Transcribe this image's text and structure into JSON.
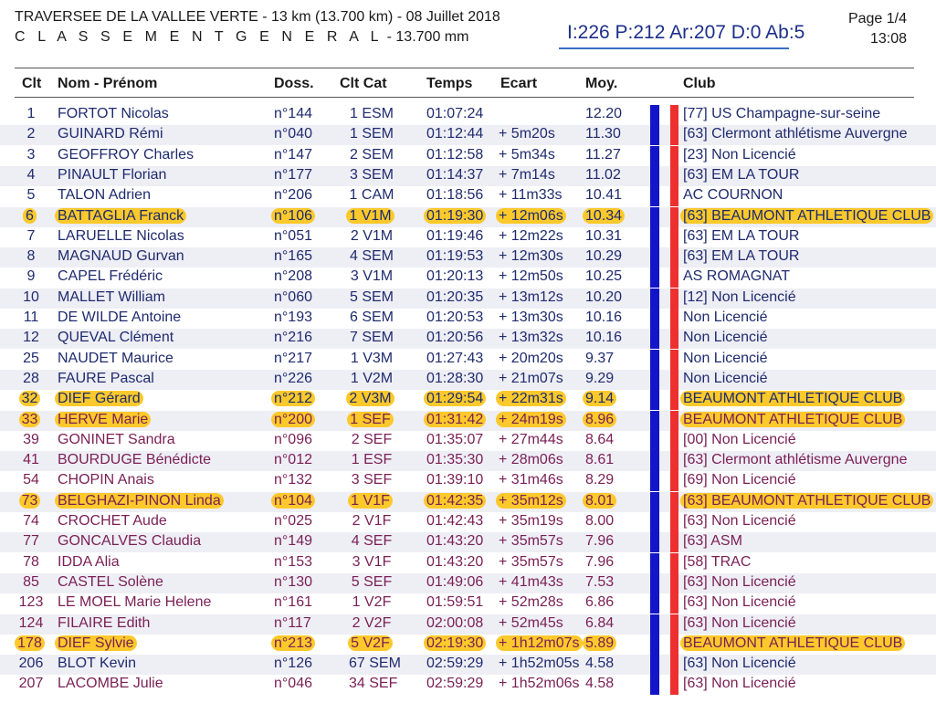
{
  "header": {
    "title": "TRAVERSEE DE LA VALLEE VERTE - 13 km (13.700 km) - 08 Juillet 2018",
    "subtitle_spaced": "C L A S S E M E N T   G E N E R A L",
    "subtitle_rest": "- 13.700 mm",
    "stats": "I:226 P:212 Ar:207 D:0 Ab:5",
    "page": "Page 1/4",
    "time": "13:08"
  },
  "columns": {
    "clt": "Clt",
    "nom": "Nom - Prénom",
    "doss": "Doss.",
    "cat": "Clt Cat",
    "temps": "Temps",
    "ecart": "Ecart",
    "moy": "Moy.",
    "club": "Club"
  },
  "colors": {
    "highlight": "#fbc92b",
    "male_text": "#1f2b6e",
    "female_text": "#7a1f55",
    "bar_blue": "#1414c8",
    "bar_red": "#ee2f2f"
  },
  "rows": [
    {
      "clt": "1",
      "nom": "FORTOT Nicolas",
      "doss": "n°144",
      "cat": "1 ESM",
      "temps": "01:07:24",
      "ecart": "",
      "moy": "12.20",
      "club": "[77] US Champagne-sur-seine",
      "sex": "M",
      "hl": false
    },
    {
      "clt": "2",
      "nom": "GUINARD Rémi",
      "doss": "n°040",
      "cat": "1 SEM",
      "temps": "01:12:44",
      "ecart": "+ 5m20s",
      "moy": "11.30",
      "club": "[63] Clermont athlétisme Auvergne",
      "sex": "M",
      "hl": false
    },
    {
      "clt": "3",
      "nom": "GEOFFROY Charles",
      "doss": "n°147",
      "cat": "2 SEM",
      "temps": "01:12:58",
      "ecart": "+ 5m34s",
      "moy": "11.27",
      "club": "[23] Non Licencié",
      "sex": "M",
      "hl": false
    },
    {
      "clt": "4",
      "nom": "PINAULT Florian",
      "doss": "n°177",
      "cat": "3 SEM",
      "temps": "01:14:37",
      "ecart": "+ 7m14s",
      "moy": "11.02",
      "club": "[63] EM LA TOUR",
      "sex": "M",
      "hl": false
    },
    {
      "clt": "5",
      "nom": "TALON Adrien",
      "doss": "n°206",
      "cat": "1 CAM",
      "temps": "01:18:56",
      "ecart": "+ 11m33s",
      "moy": "10.41",
      "club": "AC COURNON",
      "sex": "M",
      "hl": false
    },
    {
      "clt": "6",
      "nom": "BATTAGLIA Franck",
      "doss": "n°106",
      "cat": "1 V1M",
      "temps": "01:19:30",
      "ecart": "+ 12m06s",
      "moy": "10.34",
      "club": "[63] BEAUMONT ATHLETIQUE CLUB",
      "sex": "M",
      "hl": true
    },
    {
      "clt": "7",
      "nom": "LARUELLE Nicolas",
      "doss": "n°051",
      "cat": "2 V1M",
      "temps": "01:19:46",
      "ecart": "+ 12m22s",
      "moy": "10.31",
      "club": "[63] EM LA TOUR",
      "sex": "M",
      "hl": false
    },
    {
      "clt": "8",
      "nom": "MAGNAUD Gurvan",
      "doss": "n°165",
      "cat": "4 SEM",
      "temps": "01:19:53",
      "ecart": "+ 12m30s",
      "moy": "10.29",
      "club": "[63] EM LA TOUR",
      "sex": "M",
      "hl": false
    },
    {
      "clt": "9",
      "nom": "CAPEL Frédéric",
      "doss": "n°208",
      "cat": "3 V1M",
      "temps": "01:20:13",
      "ecart": "+ 12m50s",
      "moy": "10.25",
      "club": "AS ROMAGNAT",
      "sex": "M",
      "hl": false
    },
    {
      "clt": "10",
      "nom": "MALLET William",
      "doss": "n°060",
      "cat": "5 SEM",
      "temps": "01:20:35",
      "ecart": "+ 13m12s",
      "moy": "10.20",
      "club": "[12] Non Licencié",
      "sex": "M",
      "hl": false
    },
    {
      "clt": "11",
      "nom": "DE WILDE Antoine",
      "doss": "n°193",
      "cat": "6 SEM",
      "temps": "01:20:53",
      "ecart": "+ 13m30s",
      "moy": "10.16",
      "club": "Non Licencié",
      "sex": "M",
      "hl": false
    },
    {
      "clt": "12",
      "nom": "QUEVAL Clément",
      "doss": "n°216",
      "cat": "7 SEM",
      "temps": "01:20:56",
      "ecart": "+ 13m32s",
      "moy": "10.16",
      "club": "Non Licencié",
      "sex": "M",
      "hl": false
    },
    {
      "clt": "25",
      "nom": "NAUDET Maurice",
      "doss": "n°217",
      "cat": "1 V3M",
      "temps": "01:27:43",
      "ecart": "+ 20m20s",
      "moy": "9.37",
      "club": "Non Licencié",
      "sex": "M",
      "hl": false
    },
    {
      "clt": "28",
      "nom": "FAURE Pascal",
      "doss": "n°226",
      "cat": "1 V2M",
      "temps": "01:28:30",
      "ecart": "+ 21m07s",
      "moy": "9.29",
      "club": "Non Licencié",
      "sex": "M",
      "hl": false
    },
    {
      "clt": "32",
      "nom": "DIEF Gérard",
      "doss": "n°212",
      "cat": "2 V3M",
      "temps": "01:29:54",
      "ecart": "+ 22m31s",
      "moy": "9.14",
      "club": "BEAUMONT ATHLETIQUE CLUB",
      "sex": "M",
      "hl": true
    },
    {
      "clt": "33",
      "nom": "HERVE Marie",
      "doss": "n°200",
      "cat": "1 SEF",
      "temps": "01:31:42",
      "ecart": "+ 24m19s",
      "moy": "8.96",
      "club": "BEAUMONT ATHLETIQUE CLUB",
      "sex": "F",
      "hl": true
    },
    {
      "clt": "39",
      "nom": "GONINET Sandra",
      "doss": "n°096",
      "cat": "2 SEF",
      "temps": "01:35:07",
      "ecart": "+ 27m44s",
      "moy": "8.64",
      "club": "[00] Non Licencié",
      "sex": "F",
      "hl": false
    },
    {
      "clt": "41",
      "nom": "BOURDUGE Bénédicte",
      "doss": "n°012",
      "cat": "1 ESF",
      "temps": "01:35:30",
      "ecart": "+ 28m06s",
      "moy": "8.61",
      "club": "[63] Clermont athlétisme Auvergne",
      "sex": "F",
      "hl": false
    },
    {
      "clt": "54",
      "nom": "CHOPIN Anais",
      "doss": "n°132",
      "cat": "3 SEF",
      "temps": "01:39:10",
      "ecart": "+ 31m46s",
      "moy": "8.29",
      "club": "[69] Non Licencié",
      "sex": "F",
      "hl": false
    },
    {
      "clt": "73",
      "nom": "BELGHAZI-PINON Linda",
      "doss": "n°104",
      "cat": "1 V1F",
      "temps": "01:42:35",
      "ecart": "+ 35m12s",
      "moy": "8.01",
      "club": "[63] BEAUMONT ATHLETIQUE CLUB",
      "sex": "F",
      "hl": true
    },
    {
      "clt": "74",
      "nom": "CROCHET Aude",
      "doss": "n°025",
      "cat": "2 V1F",
      "temps": "01:42:43",
      "ecart": "+ 35m19s",
      "moy": "8.00",
      "club": "[63] Non Licencié",
      "sex": "F",
      "hl": false
    },
    {
      "clt": "77",
      "nom": "GONCALVES Claudia",
      "doss": "n°149",
      "cat": "4 SEF",
      "temps": "01:43:20",
      "ecart": "+ 35m57s",
      "moy": "7.96",
      "club": "[63] ASM",
      "sex": "F",
      "hl": false
    },
    {
      "clt": "78",
      "nom": "IDDA Alia",
      "doss": "n°153",
      "cat": "3 V1F",
      "temps": "01:43:20",
      "ecart": "+ 35m57s",
      "moy": "7.96",
      "club": "[58] TRAC",
      "sex": "F",
      "hl": false
    },
    {
      "clt": "85",
      "nom": "CASTEL Solène",
      "doss": "n°130",
      "cat": "5 SEF",
      "temps": "01:49:06",
      "ecart": "+ 41m43s",
      "moy": "7.53",
      "club": "[63] Non Licencié",
      "sex": "F",
      "hl": false
    },
    {
      "clt": "123",
      "nom": "LE MOEL Marie Helene",
      "doss": "n°161",
      "cat": "1 V2F",
      "temps": "01:59:51",
      "ecart": "+ 52m28s",
      "moy": "6.86",
      "club": "[63] Non Licencié",
      "sex": "F",
      "hl": false
    },
    {
      "clt": "124",
      "nom": "FILAIRE Edith",
      "doss": "n°117",
      "cat": "2 V2F",
      "temps": "02:00:08",
      "ecart": "+ 52m45s",
      "moy": "6.84",
      "club": "[63] Non Licencié",
      "sex": "F",
      "hl": false
    },
    {
      "clt": "178",
      "nom": "DIEF Sylvie",
      "doss": "n°213",
      "cat": "5 V2F",
      "temps": "02:19:30",
      "ecart": "+ 1h12m07s",
      "moy": "5.89",
      "club": "BEAUMONT ATHLETIQUE CLUB",
      "sex": "F",
      "hl": true
    },
    {
      "clt": "206",
      "nom": "BLOT Kevin",
      "doss": "n°126",
      "cat": "67 SEM",
      "temps": "02:59:29",
      "ecart": "+ 1h52m05s",
      "moy": "4.58",
      "club": "[63] Non Licencié",
      "sex": "M",
      "hl": false
    },
    {
      "clt": "207",
      "nom": "LACOMBE Julie",
      "doss": "n°046",
      "cat": "34 SEF",
      "temps": "02:59:29",
      "ecart": "+ 1h52m06s",
      "moy": "4.58",
      "club": "[63] Non Licencié",
      "sex": "F",
      "hl": false
    }
  ]
}
